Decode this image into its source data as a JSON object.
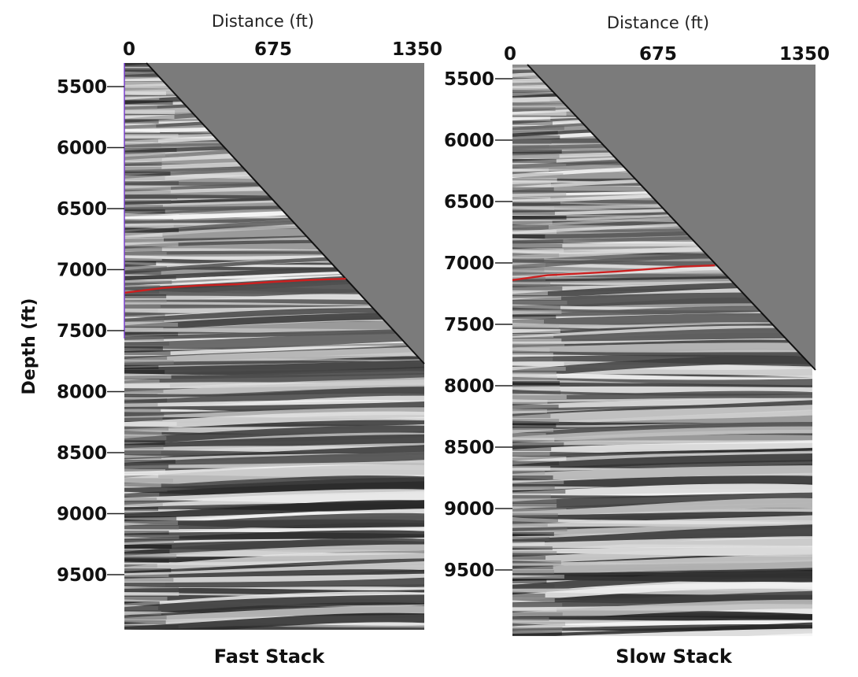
{
  "y_axis_title": "Depth (ft)",
  "colors": {
    "horizon": "#cc1f1f",
    "mask": "#7b7b7b",
    "mask_edge": "#111111"
  },
  "panels": [
    {
      "id": "fast",
      "x_axis_title": "Distance (ft)",
      "x_ticks": [
        "0",
        "675",
        "1350"
      ],
      "depth_ticks": [
        "5500",
        "6000",
        "6500",
        "7000",
        "7500",
        "8000",
        "8500",
        "9000",
        "9500"
      ],
      "caption": "Fast Stack",
      "horizon_depth_ft": [
        7190,
        7150,
        7130,
        7120,
        7100,
        7085,
        7075
      ]
    },
    {
      "id": "slow",
      "x_axis_title": "Distance (ft)",
      "x_ticks": [
        "0",
        "675",
        "1350"
      ],
      "depth_ticks": [
        "5500",
        "6000",
        "6500",
        "7000",
        "7500",
        "8000",
        "8500",
        "9000",
        "9500"
      ],
      "caption": "Slow Stack",
      "horizon_depth_ft": [
        7140,
        7100,
        7085,
        7070,
        7050,
        7030,
        7020
      ]
    }
  ]
}
